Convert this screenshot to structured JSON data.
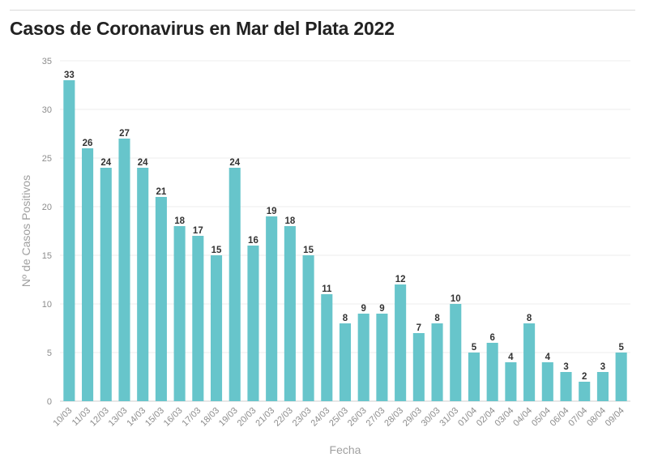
{
  "chart_data": {
    "type": "bar",
    "title": "Casos de Coronavirus en Mar del Plata 2022",
    "xlabel": "Fecha",
    "ylabel": "Nº de Casos Positivos",
    "ylim": [
      0,
      35
    ],
    "yticks": [
      0,
      5,
      10,
      15,
      20,
      25,
      30,
      35
    ],
    "grid": true,
    "legend": "none",
    "bar_color": "#67c5cb",
    "categories": [
      "10/03",
      "11/03",
      "12/03",
      "13/03",
      "14/03",
      "15/03",
      "16/03",
      "17/03",
      "18/03",
      "19/03",
      "20/03",
      "21/03",
      "22/03",
      "23/03",
      "24/03",
      "25/03",
      "26/03",
      "27/03",
      "28/03",
      "29/03",
      "30/03",
      "31/03",
      "01/04",
      "02/04",
      "03/04",
      "04/04",
      "05/04",
      "06/04",
      "07/04",
      "08/04",
      "09/04"
    ],
    "values": [
      33,
      26,
      24,
      27,
      24,
      21,
      18,
      17,
      15,
      24,
      16,
      19,
      18,
      15,
      11,
      8,
      9,
      9,
      12,
      7,
      8,
      10,
      5,
      6,
      4,
      8,
      4,
      3,
      2,
      3,
      5
    ]
  }
}
